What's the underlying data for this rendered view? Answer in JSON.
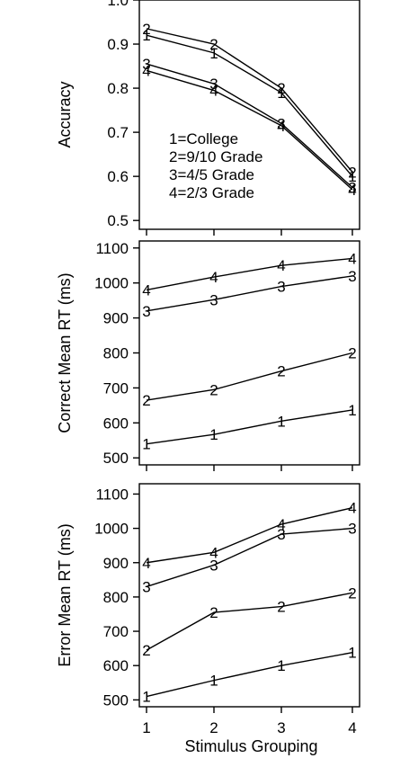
{
  "chart_data": [
    {
      "type": "line",
      "ylabel": "Accuracy",
      "xlabel": "",
      "x": [
        1,
        2,
        3,
        4
      ],
      "ylim": [
        0.48,
        1.0
      ],
      "yticks": [
        0.5,
        0.6,
        0.7,
        0.8,
        0.9,
        1.0
      ],
      "ytick_labels": [
        "0.5",
        "0.6",
        "0.7",
        "0.8",
        "0.9",
        "1.0"
      ],
      "series": [
        {
          "marker": "1",
          "values": [
            0.92,
            0.88,
            0.79,
            0.6
          ]
        },
        {
          "marker": "2",
          "values": [
            0.935,
            0.9,
            0.8,
            0.61
          ]
        },
        {
          "marker": "3",
          "values": [
            0.855,
            0.81,
            0.72,
            0.575
          ]
        },
        {
          "marker": "4",
          "values": [
            0.84,
            0.795,
            0.715,
            0.57
          ]
        }
      ],
      "legend": {
        "placement": "center-left",
        "entries": [
          "1=College",
          "2=9/10 Grade",
          "3=4/5 Grade",
          "4=2/3 Grade"
        ]
      }
    },
    {
      "type": "line",
      "ylabel": "Correct Mean RT (ms)",
      "xlabel": "",
      "x": [
        1,
        2,
        3,
        4
      ],
      "ylim": [
        480,
        1120
      ],
      "yticks": [
        500,
        600,
        700,
        800,
        900,
        1000,
        1100
      ],
      "ytick_labels": [
        "500",
        "600",
        "700",
        "800",
        "900",
        "1000",
        "1100"
      ],
      "series": [
        {
          "marker": "1",
          "values": [
            540,
            567,
            605,
            637
          ]
        },
        {
          "marker": "2",
          "values": [
            665,
            695,
            748,
            800
          ]
        },
        {
          "marker": "3",
          "values": [
            920,
            952,
            990,
            1020
          ]
        },
        {
          "marker": "4",
          "values": [
            980,
            1017,
            1050,
            1070
          ]
        }
      ]
    },
    {
      "type": "line",
      "ylabel": "Error Mean RT (ms)",
      "xlabel": "Stimulus Grouping",
      "x": [
        1,
        2,
        3,
        4
      ],
      "ylim": [
        480,
        1130
      ],
      "yticks": [
        500,
        600,
        700,
        800,
        900,
        1000,
        1100
      ],
      "ytick_labels": [
        "500",
        "600",
        "700",
        "800",
        "900",
        "1000",
        "1100"
      ],
      "xtick_labels": [
        "1",
        "2",
        "3",
        "4"
      ],
      "series": [
        {
          "marker": "1",
          "values": [
            510,
            557,
            600,
            638
          ]
        },
        {
          "marker": "2",
          "values": [
            645,
            755,
            772,
            812
          ]
        },
        {
          "marker": "3",
          "values": [
            830,
            893,
            983,
            1000
          ]
        },
        {
          "marker": "4",
          "values": [
            900,
            930,
            1012,
            1060
          ]
        }
      ]
    }
  ]
}
